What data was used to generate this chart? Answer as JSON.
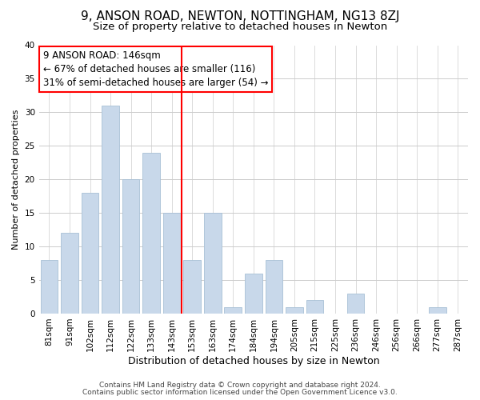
{
  "title": "9, ANSON ROAD, NEWTON, NOTTINGHAM, NG13 8ZJ",
  "subtitle": "Size of property relative to detached houses in Newton",
  "xlabel": "Distribution of detached houses by size in Newton",
  "ylabel": "Number of detached properties",
  "footer_line1": "Contains HM Land Registry data © Crown copyright and database right 2024.",
  "footer_line2": "Contains public sector information licensed under the Open Government Licence v3.0.",
  "annotation_line1": "9 ANSON ROAD: 146sqm",
  "annotation_line2": "← 67% of detached houses are smaller (116)",
  "annotation_line3": "31% of semi-detached houses are larger (54) →",
  "bar_labels": [
    "81sqm",
    "91sqm",
    "102sqm",
    "112sqm",
    "122sqm",
    "133sqm",
    "143sqm",
    "153sqm",
    "163sqm",
    "174sqm",
    "184sqm",
    "194sqm",
    "205sqm",
    "215sqm",
    "225sqm",
    "236sqm",
    "246sqm",
    "256sqm",
    "266sqm",
    "277sqm",
    "287sqm"
  ],
  "bar_values": [
    8,
    12,
    18,
    31,
    20,
    24,
    15,
    8,
    15,
    1,
    6,
    8,
    1,
    2,
    0,
    3,
    0,
    0,
    0,
    1,
    0
  ],
  "bar_color": "#c8d8ea",
  "bar_edge_color": "#a8c0d6",
  "redline_index": 6,
  "ylim": [
    0,
    40
  ],
  "yticks": [
    0,
    5,
    10,
    15,
    20,
    25,
    30,
    35,
    40
  ],
  "grid_color": "#cccccc",
  "background_color": "#ffffff",
  "title_fontsize": 11,
  "subtitle_fontsize": 9.5,
  "xlabel_fontsize": 9,
  "ylabel_fontsize": 8,
  "tick_fontsize": 7.5,
  "annotation_fontsize": 8.5,
  "footer_fontsize": 6.5
}
